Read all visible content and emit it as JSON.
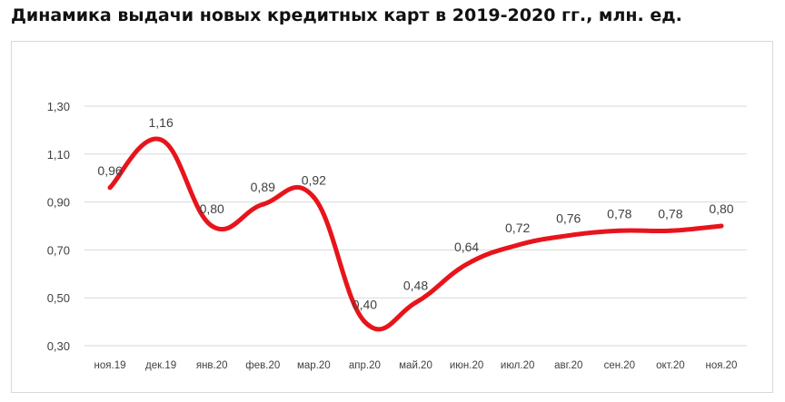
{
  "chart_data": {
    "type": "line",
    "title": "Динамика выдачи новых кредитных карт в 2019-2020 гг., млн. ед.",
    "xlabel": "",
    "ylabel": "",
    "categories": [
      "ноя.19",
      "дек.19",
      "янв.20",
      "фев.20",
      "мар.20",
      "апр.20",
      "май.20",
      "июн.20",
      "июл.20",
      "авг.20",
      "сен.20",
      "окт.20",
      "ноя.20"
    ],
    "series": [
      {
        "values": [
          0.96,
          1.16,
          0.8,
          0.89,
          0.92,
          0.4,
          0.48,
          0.64,
          0.72,
          0.76,
          0.78,
          0.78,
          0.8
        ],
        "data_labels": [
          "0,96",
          "1,16",
          "0,80",
          "0,89",
          "0,92",
          "0,40",
          "0,48",
          "0,64",
          "0,72",
          "0,76",
          "0,78",
          "0,78",
          "0,80"
        ]
      }
    ],
    "ylim": [
      0.3,
      1.3
    ],
    "yticks": [
      0.3,
      0.5,
      0.7,
      0.9,
      1.1,
      1.3
    ],
    "ytick_labels": [
      "0,30",
      "0,50",
      "0,70",
      "0,90",
      "1,10",
      "1,30"
    ],
    "grid": true,
    "line_color": "#e8141b",
    "grid_color": "#d9d9d9"
  }
}
